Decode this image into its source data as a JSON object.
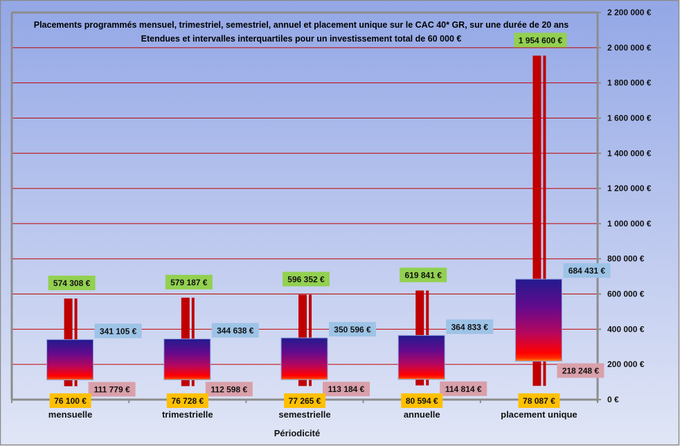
{
  "chart_data": {
    "type": "box",
    "title": "Placements programmés  mensuel, trimestriel, semestriel, annuel et placement unique sur le CAC 40* GR, sur une durée de 20 ans",
    "subtitle": "Etendues et intervalles interquartiles pour un investissement total de 60 000 €",
    "xlabel": "Périodicité",
    "ylabel": "",
    "ylim": [
      0,
      2200000
    ],
    "y_ticks": [
      0,
      200000,
      400000,
      600000,
      800000,
      1000000,
      1200000,
      1400000,
      1600000,
      1800000,
      2000000,
      2200000
    ],
    "y_tick_labels": [
      "0 €",
      "200 000 €",
      "400 000 €",
      "600 000 €",
      "800 000 €",
      "1 000 000 €",
      "1 200 000 €",
      "1 400 000 €",
      "1 600 000 €",
      "1 800 000 €",
      "2 000 000 €",
      "2 200 000 €"
    ],
    "grid": true,
    "categories": [
      "mensuelle",
      "trimestrielle",
      "semestrielle",
      "annuelle",
      "placement unique"
    ],
    "series": [
      {
        "name": "max",
        "values": [
          574308,
          579187,
          596352,
          619841,
          1954600
        ],
        "labels": [
          "574 308 €",
          "579 187 €",
          "596 352 €",
          "619 841 €",
          "1 954 600 €"
        ]
      },
      {
        "name": "q3",
        "values": [
          341105,
          344638,
          350596,
          364833,
          684431
        ],
        "labels": [
          "341 105 €",
          "344 638 €",
          "350 596 €",
          "364 833 €",
          "684 431 €"
        ]
      },
      {
        "name": "q1",
        "values": [
          111779,
          112598,
          113184,
          114814,
          218248
        ],
        "labels": [
          "111 779 €",
          "112 598 €",
          "113 184 €",
          "114 814 €",
          "218 248 €"
        ]
      },
      {
        "name": "min",
        "values": [
          76100,
          76728,
          77265,
          80594,
          78087
        ],
        "labels": [
          "76 100 €",
          "76 728 €",
          "77 265 €",
          "80 594 €",
          "78 087 €"
        ]
      }
    ],
    "colors": {
      "background_top": "#94a8e6",
      "background_bottom": "#e0e5f6",
      "grid": "#c00000",
      "axis": "#8c8c8c",
      "range_bar": "#c00000",
      "box_top": "#1f1a8c",
      "box_mid": "#a3076e",
      "box_bottom": "#ff0000",
      "label_max": "#92d050",
      "label_q3": "#9dc3e6",
      "label_q1": "#d9a0aa",
      "label_min": "#ffc000"
    }
  }
}
